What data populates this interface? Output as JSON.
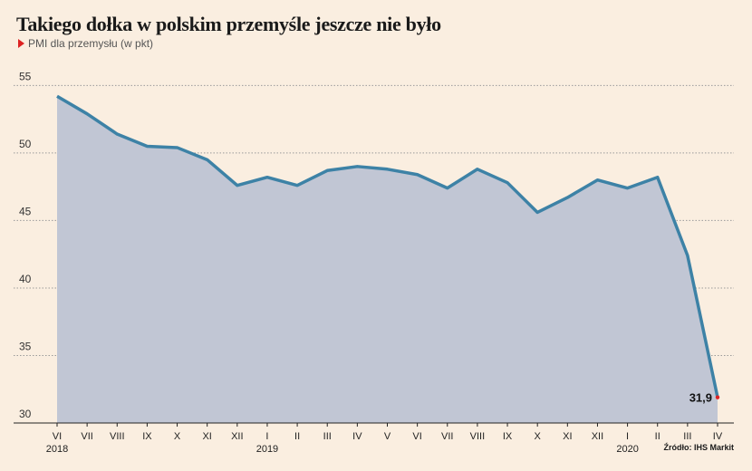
{
  "title": "Takiego dołka w polskim przemyśle jeszcze nie było",
  "subtitle": "PMI dla przemysłu (w pkt)",
  "source": "Źródło: IHS Markit",
  "colors": {
    "area": "#c1c6d4",
    "line": "#3d82a6",
    "grid": "#9a9a9a",
    "axis": "#222222",
    "background": "#faeee0",
    "marker": "#dd2222"
  },
  "chart_data": {
    "type": "area",
    "categories": [
      "VI",
      "VII",
      "VIII",
      "IX",
      "X",
      "XI",
      "XII",
      "I",
      "II",
      "III",
      "IV",
      "V",
      "VI",
      "VII",
      "VIII",
      "IX",
      "X",
      "XI",
      "XII",
      "I",
      "II",
      "III",
      "IV"
    ],
    "year_labels": [
      {
        "label": "2018",
        "category_index": 0
      },
      {
        "label": "2019",
        "category_index": 7
      },
      {
        "label": "2020",
        "category_index": 19
      }
    ],
    "series": [
      {
        "values": [
          54.2,
          52.9,
          51.4,
          50.5,
          50.4,
          49.5,
          47.6,
          48.2,
          47.6,
          48.7,
          49.0,
          48.8,
          48.4,
          47.4,
          48.8,
          47.8,
          45.6,
          46.7,
          48.0,
          47.4,
          48.2,
          42.4,
          31.9
        ]
      }
    ],
    "yticks": [
      30,
      35,
      40,
      45,
      50,
      55
    ],
    "ylim": [
      30,
      56.3
    ],
    "grid": true,
    "annotations": [
      {
        "text": "31,9",
        "category_index": 22
      }
    ]
  }
}
